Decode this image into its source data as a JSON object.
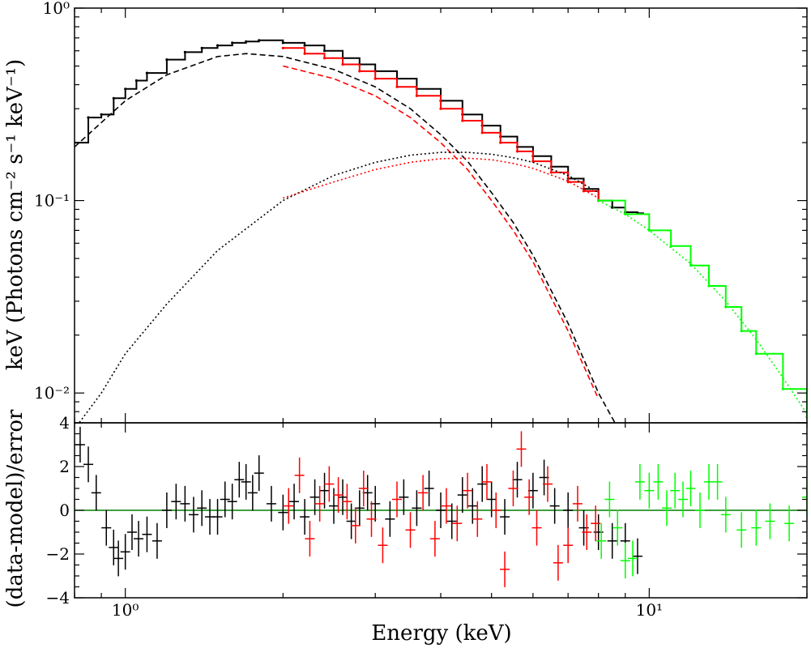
{
  "chart_data": [
    {
      "type": "line",
      "panel": "spectrum",
      "ylabel": "keV (Photons cm⁻² s⁻¹ keV⁻¹)",
      "xscale": "log",
      "yscale": "log",
      "xlim": [
        0.8,
        20
      ],
      "ylim": [
        0.007,
        1.0
      ],
      "x_ticks": [
        {
          "value": 1,
          "label": "10⁰"
        },
        {
          "value": 10,
          "label": "10¹"
        }
      ],
      "y_ticks": [
        {
          "value": 1,
          "label": "10⁰"
        },
        {
          "value": 0.1,
          "label": "10⁻¹"
        },
        {
          "value": 0.01,
          "label": "10⁻²"
        }
      ],
      "series": [
        {
          "color": "#000000",
          "style": "data-steps",
          "x": [
            0.8,
            0.85,
            0.9,
            0.95,
            1.0,
            1.05,
            1.1,
            1.2,
            1.3,
            1.4,
            1.5,
            1.6,
            1.7,
            1.8,
            2.0,
            2.2,
            2.4,
            2.6,
            2.8,
            3.0,
            3.3,
            3.6,
            4.0,
            4.4,
            4.8,
            5.2,
            5.6,
            6.0,
            6.5,
            7.0,
            7.5,
            8.0,
            8.5,
            9.0,
            9.5
          ],
          "y": [
            0.2,
            0.27,
            0.28,
            0.34,
            0.38,
            0.42,
            0.46,
            0.54,
            0.59,
            0.62,
            0.64,
            0.66,
            0.67,
            0.68,
            0.66,
            0.64,
            0.6,
            0.55,
            0.51,
            0.47,
            0.43,
            0.38,
            0.33,
            0.28,
            0.245,
            0.215,
            0.19,
            0.17,
            0.15,
            0.13,
            0.115,
            0.1,
            0.092,
            0.087,
            0.086
          ]
        },
        {
          "color": "#ff0000",
          "style": "data-steps",
          "x": [
            2.0,
            2.2,
            2.4,
            2.6,
            2.8,
            3.0,
            3.3,
            3.6,
            4.0,
            4.4,
            4.8,
            5.2,
            5.6,
            6.0,
            6.5,
            7.0,
            7.5,
            8.0
          ],
          "y": [
            0.62,
            0.58,
            0.55,
            0.51,
            0.47,
            0.43,
            0.39,
            0.35,
            0.3,
            0.26,
            0.225,
            0.2,
            0.18,
            0.16,
            0.14,
            0.125,
            0.112,
            0.1
          ]
        },
        {
          "color": "#00ff00",
          "style": "data-steps",
          "x": [
            8.0,
            9.0,
            10.0,
            11.0,
            12.0,
            13.0,
            14.0,
            15.0,
            16.0,
            18.0,
            20.0
          ],
          "y": [
            0.1,
            0.085,
            0.07,
            0.058,
            0.046,
            0.036,
            0.028,
            0.021,
            0.016,
            0.0105,
            0.0075
          ]
        },
        {
          "color": "#000000",
          "style": "dashed",
          "x": [
            0.8,
            1.0,
            1.2,
            1.5,
            1.7,
            2.0,
            2.5,
            3.0,
            3.5,
            4.0,
            4.5,
            5.0,
            5.5,
            6.0,
            7.0,
            8.0,
            8.6
          ],
          "y": [
            0.19,
            0.33,
            0.45,
            0.56,
            0.58,
            0.56,
            0.48,
            0.39,
            0.3,
            0.22,
            0.16,
            0.11,
            0.077,
            0.052,
            0.023,
            0.01,
            0.007
          ]
        },
        {
          "color": "#ff0000",
          "style": "dashed",
          "x": [
            2.0,
            2.5,
            3.0,
            3.5,
            4.0,
            4.5,
            5.0,
            5.5,
            6.0,
            7.0,
            8.0
          ],
          "y": [
            0.5,
            0.43,
            0.35,
            0.27,
            0.2,
            0.145,
            0.1,
            0.07,
            0.048,
            0.021,
            0.0093
          ]
        },
        {
          "color": "#000000",
          "style": "dotted",
          "x": [
            0.8,
            0.9,
            1.0,
            1.2,
            1.5,
            2.0,
            2.5,
            3.0,
            3.5,
            4.0,
            4.5,
            5.0,
            5.5,
            6.0,
            7.0,
            8.0
          ],
          "y": [
            0.0065,
            0.01,
            0.016,
            0.029,
            0.055,
            0.1,
            0.135,
            0.158,
            0.172,
            0.178,
            0.178,
            0.174,
            0.167,
            0.158,
            0.135,
            0.11
          ]
        },
        {
          "color": "#ff0000",
          "style": "dotted",
          "x": [
            2.0,
            2.5,
            3.0,
            3.5,
            4.0,
            4.5,
            5.0,
            5.5,
            6.0,
            7.0,
            8.0
          ],
          "y": [
            0.103,
            0.125,
            0.145,
            0.158,
            0.165,
            0.166,
            0.163,
            0.156,
            0.147,
            0.126,
            0.103
          ]
        },
        {
          "color": "#00ff00",
          "style": "dotted",
          "x": [
            8.0,
            9.0,
            10.0,
            12.0,
            14.0,
            16.0,
            18.0,
            20.0
          ],
          "y": [
            0.1,
            0.085,
            0.07,
            0.047,
            0.03,
            0.019,
            0.012,
            0.0078
          ]
        }
      ]
    },
    {
      "type": "scatter",
      "panel": "residuals",
      "xlabel": "Energy (keV)",
      "ylabel": "(data-model)/error",
      "xscale": "log",
      "xlim": [
        0.8,
        20
      ],
      "ylim": [
        -4,
        4
      ],
      "y_ticks": [
        -4,
        -2,
        0,
        2,
        4
      ],
      "reference_line": {
        "y": 0,
        "color": "#008000"
      },
      "series": [
        {
          "color": "#000000",
          "x": [
            0.82,
            0.85,
            0.88,
            0.92,
            0.95,
            0.97,
            1.0,
            1.03,
            1.06,
            1.1,
            1.15,
            1.2,
            1.25,
            1.3,
            1.35,
            1.4,
            1.45,
            1.5,
            1.55,
            1.6,
            1.65,
            1.7,
            1.75,
            1.8,
            1.9,
            2.0,
            2.1,
            2.2,
            2.3,
            2.4,
            2.5,
            2.6,
            2.7,
            2.8,
            2.9,
            3.0,
            3.2,
            3.4,
            3.6,
            3.8,
            4.0,
            4.2,
            4.4,
            4.6,
            4.8,
            5.0,
            5.3,
            5.6,
            6.0,
            6.3,
            6.6,
            7.0,
            7.5,
            8.0,
            8.5,
            9.0,
            9.5
          ],
          "y": [
            3.0,
            2.1,
            0.8,
            -0.8,
            -1.7,
            -2.2,
            -1.9,
            -1.0,
            -1.3,
            -1.1,
            -1.4,
            0.0,
            0.4,
            0.3,
            -0.2,
            0.1,
            -0.3,
            -0.3,
            0.5,
            0.4,
            1.4,
            1.3,
            0.8,
            1.7,
            0.3,
            -0.1,
            0.4,
            -0.3,
            0.6,
            0.9,
            0.2,
            0.6,
            -0.5,
            0.1,
            0.8,
            0.3,
            -0.4,
            0.6,
            0.1,
            1.0,
            0.0,
            -0.5,
            0.7,
            0.2,
            1.2,
            0.5,
            -0.3,
            1.4,
            0.9,
            1.5,
            0.2,
            0.0,
            -0.8,
            -1.0,
            -1.4,
            -1.4,
            -2.1
          ]
        },
        {
          "color": "#ff0000",
          "x": [
            2.05,
            2.15,
            2.25,
            2.35,
            2.45,
            2.55,
            2.65,
            2.75,
            2.85,
            2.95,
            3.1,
            3.3,
            3.5,
            3.7,
            3.9,
            4.1,
            4.3,
            4.5,
            4.7,
            4.9,
            5.1,
            5.3,
            5.5,
            5.7,
            5.9,
            6.1,
            6.4,
            6.7,
            7.0,
            7.3,
            7.6,
            7.9
          ],
          "y": [
            0.2,
            1.6,
            -1.3,
            0.3,
            1.2,
            0.7,
            0.4,
            -0.7,
            1.0,
            -0.4,
            -1.6,
            0.5,
            -0.9,
            0.8,
            -1.3,
            0.2,
            -0.6,
            0.9,
            -0.4,
            1.3,
            0.0,
            -2.7,
            1.0,
            2.8,
            0.6,
            -0.8,
            1.2,
            -2.4,
            -1.6,
            0.3,
            -1.0,
            -0.6
          ]
        },
        {
          "color": "#00ff00",
          "x": [
            8.1,
            8.4,
            8.7,
            9.0,
            9.3,
            9.6,
            10.0,
            10.4,
            10.8,
            11.2,
            11.6,
            12.0,
            12.5,
            13.0,
            13.5,
            14.0,
            15.0,
            16.0,
            17.0,
            18.5,
            20.0
          ],
          "y": [
            -1.4,
            0.5,
            -0.8,
            -2.3,
            -2.2,
            1.3,
            0.9,
            1.3,
            0.1,
            0.9,
            0.5,
            1.0,
            0.0,
            1.3,
            1.3,
            -0.2,
            -0.9,
            -0.8,
            -0.5,
            -0.6,
            0.6
          ]
        }
      ]
    }
  ]
}
